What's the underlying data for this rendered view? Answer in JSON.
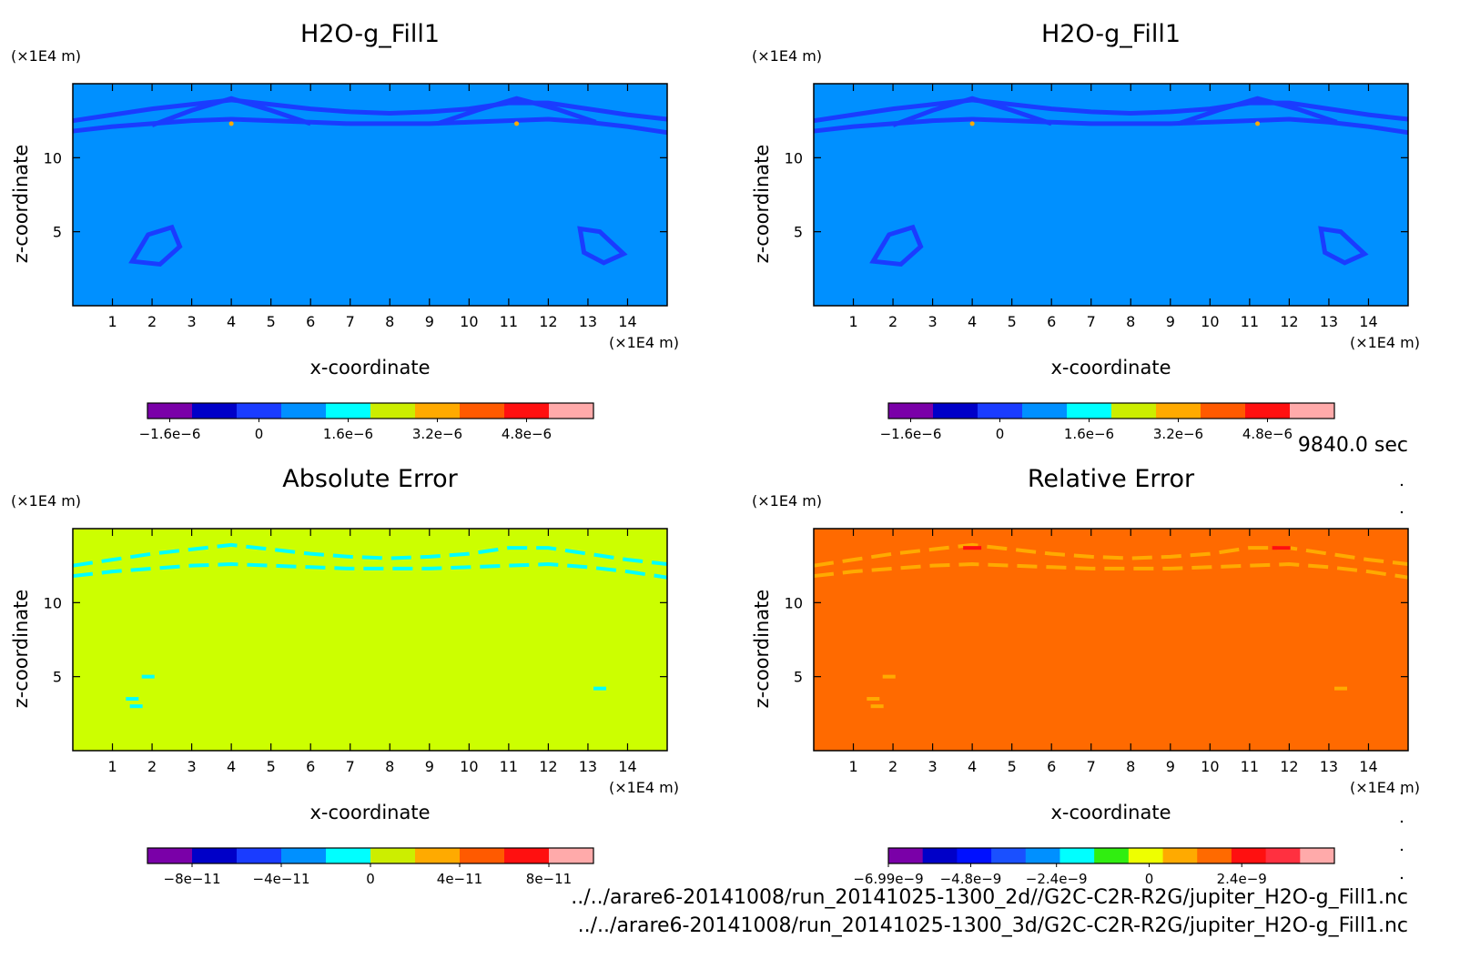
{
  "time_label": "9840.0 sec",
  "footer": {
    "line1": "../../arare6-20141008/run_20141025-1300_2d//G2C-C2R-R2G/jupiter_H2O-g_Fill1.nc",
    "line2": "../../arare6-20141008/run_20141025-1300_3d/G2C-C2R-R2G/jupiter_H2O-g_Fill1.nc"
  },
  "chart_data": [
    {
      "type": "heatmap",
      "title": "H2O-g_Fill1",
      "xlabel": "x-coordinate",
      "ylabel": "z-coordinate",
      "xunit": "(×1E4 m)",
      "yunit": "(×1E4 m)",
      "xlim": [
        0,
        15
      ],
      "ylim": [
        0,
        15
      ],
      "xticks": [
        "1",
        "2",
        "3",
        "4",
        "5",
        "6",
        "7",
        "8",
        "9",
        "10",
        "11",
        "12",
        "13",
        "14"
      ],
      "yticks": [
        "5",
        "10"
      ],
      "background_color": "#0090ff",
      "feature_color": "#1a3cff",
      "colorbar": {
        "colors": [
          "#7a00a8",
          "#0000c8",
          "#1a3cff",
          "#0090ff",
          "#00ffff",
          "#ccee00",
          "#ffaa00",
          "#ff5a00",
          "#ff1010",
          "#ffaaaa"
        ],
        "ticks": [
          "−1.6e−6",
          "0",
          "1.6e−6",
          "3.2e−6",
          "4.8e−6"
        ],
        "tick_positions": [
          0.5,
          2.5,
          4.5,
          6.5,
          8.5
        ]
      }
    },
    {
      "type": "heatmap",
      "title": "H2O-g_Fill1",
      "xlabel": "x-coordinate",
      "ylabel": "z-coordinate",
      "xunit": "(×1E4 m)",
      "yunit": "(×1E4 m)",
      "xlim": [
        0,
        15
      ],
      "ylim": [
        0,
        15
      ],
      "xticks": [
        "1",
        "2",
        "3",
        "4",
        "5",
        "6",
        "7",
        "8",
        "9",
        "10",
        "11",
        "12",
        "13",
        "14"
      ],
      "yticks": [
        "5",
        "10"
      ],
      "background_color": "#0090ff",
      "feature_color": "#1a3cff",
      "colorbar": {
        "colors": [
          "#7a00a8",
          "#0000c8",
          "#1a3cff",
          "#0090ff",
          "#00ffff",
          "#ccee00",
          "#ffaa00",
          "#ff5a00",
          "#ff1010",
          "#ffaaaa"
        ],
        "ticks": [
          "−1.6e−6",
          "0",
          "1.6e−6",
          "3.2e−6",
          "4.8e−6"
        ],
        "tick_positions": [
          0.5,
          2.5,
          4.5,
          6.5,
          8.5
        ]
      }
    },
    {
      "type": "heatmap",
      "title": "Absolute Error",
      "xlabel": "x-coordinate",
      "ylabel": "z-coordinate",
      "xunit": "(×1E4 m)",
      "yunit": "(×1E4 m)",
      "xlim": [
        0,
        15
      ],
      "ylim": [
        0,
        15
      ],
      "xticks": [
        "1",
        "2",
        "3",
        "4",
        "5",
        "6",
        "7",
        "8",
        "9",
        "10",
        "11",
        "12",
        "13",
        "14"
      ],
      "yticks": [
        "5",
        "10"
      ],
      "background_color": "#ccff00",
      "feature_color": "#00ffff",
      "colorbar": {
        "colors": [
          "#7a00a8",
          "#0000c8",
          "#1a3cff",
          "#0090ff",
          "#00ffff",
          "#ccee00",
          "#ffaa00",
          "#ff5a00",
          "#ff1010",
          "#ffaaaa"
        ],
        "ticks": [
          "−8e−11",
          "−4e−11",
          "0",
          "4e−11",
          "8e−11"
        ],
        "tick_positions": [
          1,
          3,
          5,
          7,
          9
        ]
      }
    },
    {
      "type": "heatmap",
      "title": "Relative Error",
      "xlabel": "x-coordinate",
      "ylabel": "z-coordinate",
      "xunit": "(×1E4 m)",
      "yunit": "(×1E4 m)",
      "xlim": [
        0,
        15
      ],
      "ylim": [
        0,
        15
      ],
      "xticks": [
        "1",
        "2",
        "3",
        "4",
        "5",
        "6",
        "7",
        "8",
        "9",
        "10",
        "11",
        "12",
        "13",
        "14"
      ],
      "yticks": [
        "5",
        "10"
      ],
      "background_color": "#ff6a00",
      "feature_color": "#ffaa00",
      "colorbar": {
        "colors": [
          "#7a00a8",
          "#0000c8",
          "#0010ff",
          "#1a50ff",
          "#0090ff",
          "#00ffff",
          "#30ee10",
          "#eeff00",
          "#ffaa00",
          "#ff6a00",
          "#ff1010",
          "#ff3040",
          "#ffaaaa"
        ],
        "ticks": [
          "−6.99e−9",
          "−4.8e−9",
          "−2.4e−9",
          "0",
          "2.4e−9"
        ],
        "tick_positions": [
          0,
          2.4,
          4.9,
          7.6,
          10.3
        ]
      }
    }
  ]
}
